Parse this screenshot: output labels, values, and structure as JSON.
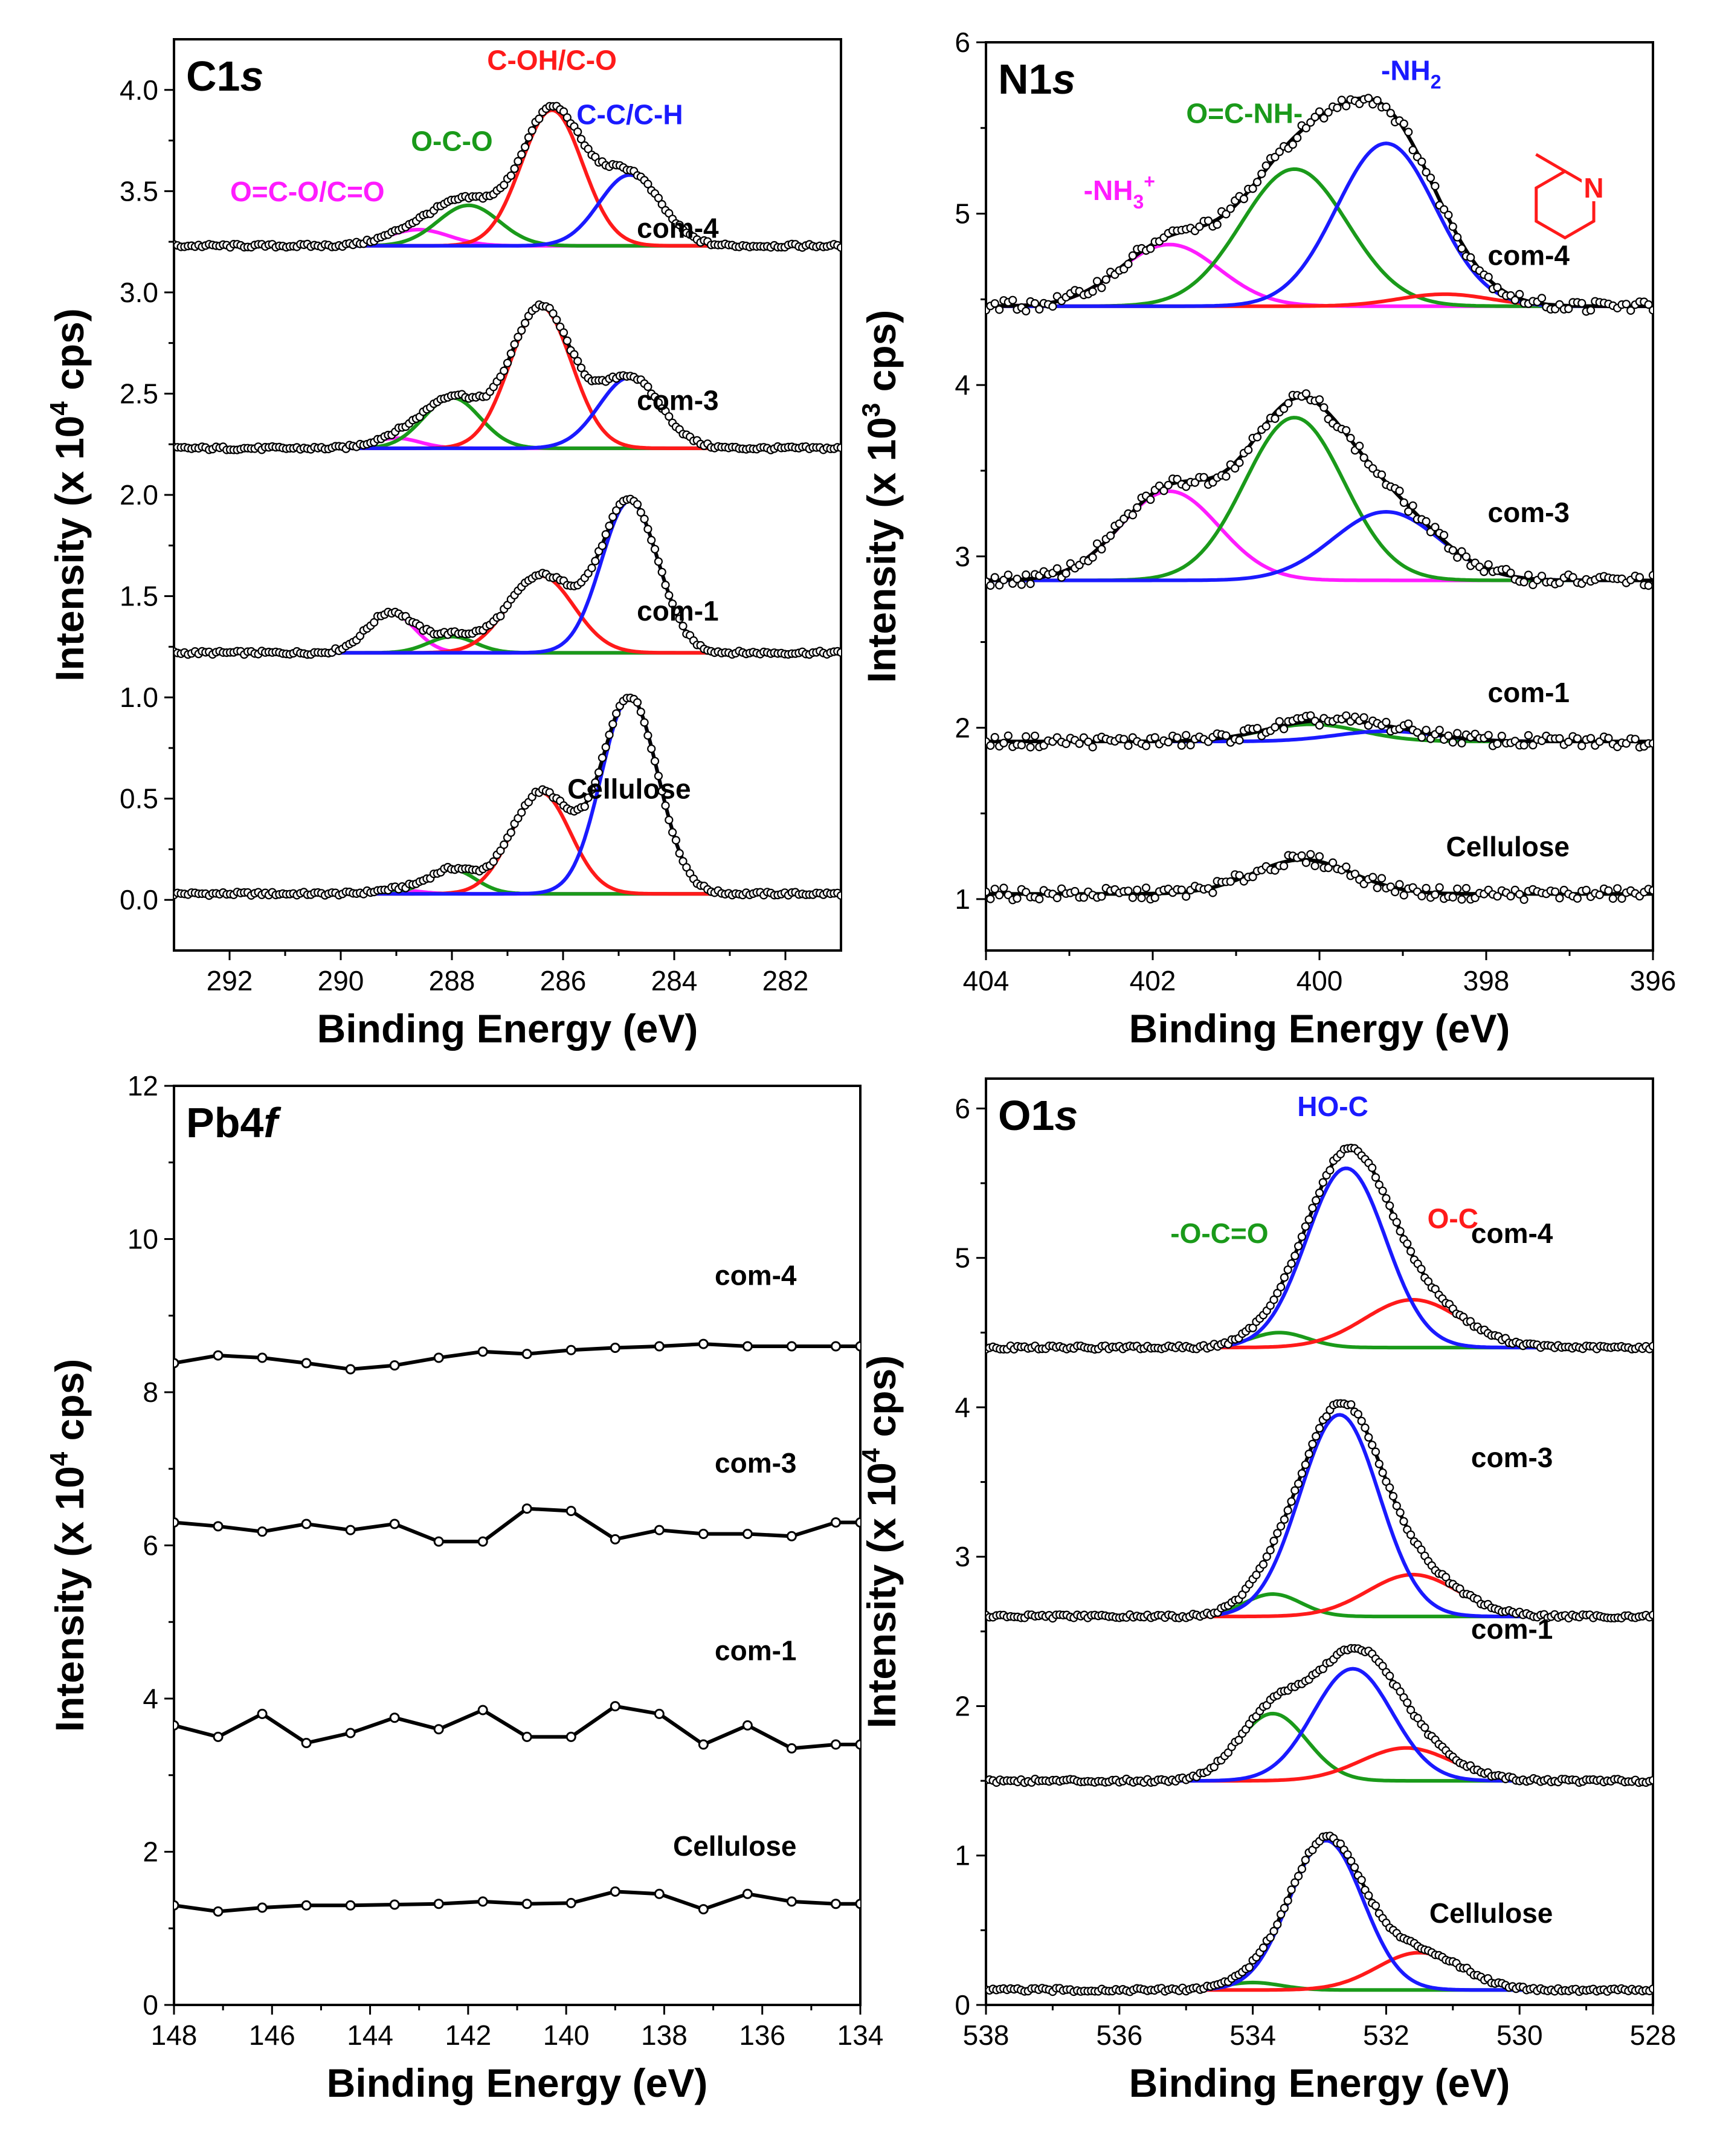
{
  "colors": {
    "magenta": "#ff1cff",
    "green": "#1a9a1a",
    "red": "#ff1a1a",
    "blue": "#1a1aff",
    "black": "#000000"
  },
  "chart_data": [
    {
      "id": "c1s",
      "type": "line",
      "title": "C1s",
      "title_main": "C1",
      "title_italic": "s",
      "xlabel": "Binding Energy (eV)",
      "ylabel_pre": "Intensity (x 10",
      "ylabel_sup": "4",
      "ylabel_post": " cps)",
      "xlim": [
        293,
        281
      ],
      "ylim": [
        -0.25,
        4.25
      ],
      "xticks": [
        292,
        290,
        288,
        286,
        284,
        282
      ],
      "yticks": [
        0.0,
        0.5,
        1.0,
        1.5,
        2.0,
        2.5,
        3.0,
        3.5,
        4.0
      ],
      "ytick_labels": [
        "0.0",
        "0.5",
        "1.0",
        "1.5",
        "2.0",
        "2.5",
        "3.0",
        "3.5",
        "4.0"
      ],
      "peak_labels": [
        {
          "text": "O=C-O/C=O",
          "color": "magenta",
          "x": 290.6,
          "y": 3.45
        },
        {
          "text": "O-C-O",
          "color": "green",
          "x": 288.0,
          "y": 3.7
        },
        {
          "text": "C-OH/C-O",
          "color": "red",
          "x": 286.2,
          "y": 4.1
        },
        {
          "text": "C-C/C-H",
          "color": "blue",
          "x": 284.8,
          "y": 3.83
        }
      ],
      "series": [
        {
          "name": "Cellulose",
          "label_x": 283.7,
          "label_y": 0.5,
          "baseline": 0.03,
          "peaks": [
            {
              "name": "O=C-O/C=O",
              "center": 289.0,
              "height": 0.02,
              "width": 0.9,
              "color": "magenta"
            },
            {
              "name": "O-C-O",
              "center": 288.0,
              "height": 0.12,
              "width": 1.0,
              "color": "green"
            },
            {
              "name": "C-OH/C-O",
              "center": 286.4,
              "height": 0.5,
              "width": 1.25,
              "color": "red"
            },
            {
              "name": "C-C/C-H",
              "center": 284.8,
              "height": 0.97,
              "width": 1.2,
              "color": "blue"
            }
          ]
        },
        {
          "name": "com-1",
          "label_x": 283.2,
          "label_y": 1.38,
          "baseline": 1.22,
          "peaks": [
            {
              "name": "O=C-O/C=O",
              "center": 289.1,
              "height": 0.2,
              "width": 1.0,
              "color": "magenta"
            },
            {
              "name": "O-C-O",
              "center": 288.0,
              "height": 0.08,
              "width": 1.0,
              "color": "green"
            },
            {
              "name": "C-OH/C-O",
              "center": 286.4,
              "height": 0.38,
              "width": 1.4,
              "color": "red"
            },
            {
              "name": "C-C/C-H",
              "center": 284.8,
              "height": 0.75,
              "width": 1.2,
              "color": "blue"
            }
          ]
        },
        {
          "name": "com-3",
          "label_x": 283.2,
          "label_y": 2.42,
          "baseline": 2.23,
          "peaks": [
            {
              "name": "O=C-O/C=O",
              "center": 289.0,
              "height": 0.05,
              "width": 1.0,
              "color": "magenta"
            },
            {
              "name": "O-C-O",
              "center": 288.0,
              "height": 0.25,
              "width": 1.2,
              "color": "green"
            },
            {
              "name": "C-OH/C-O",
              "center": 286.4,
              "height": 0.7,
              "width": 1.3,
              "color": "red"
            },
            {
              "name": "C-C/C-H",
              "center": 284.8,
              "height": 0.35,
              "width": 1.3,
              "color": "blue"
            }
          ]
        },
        {
          "name": "com-4",
          "label_x": 283.2,
          "label_y": 3.27,
          "baseline": 3.23,
          "peaks": [
            {
              "name": "O=C-O/C=O",
              "center": 288.6,
              "height": 0.08,
              "width": 1.3,
              "color": "magenta"
            },
            {
              "name": "O-C-O",
              "center": 287.7,
              "height": 0.2,
              "width": 1.3,
              "color": "green"
            },
            {
              "name": "C-OH/C-O",
              "center": 286.2,
              "height": 0.67,
              "width": 1.3,
              "color": "red"
            },
            {
              "name": "C-C/C-H",
              "center": 284.8,
              "height": 0.35,
              "width": 1.3,
              "color": "blue"
            }
          ]
        }
      ]
    },
    {
      "id": "n1s",
      "type": "line",
      "title": "N1s",
      "title_main": "N1",
      "title_italic": "s",
      "xlabel": "Binding Energy (eV)",
      "ylabel_pre": "Intensity (x 10",
      "ylabel_sup": "3",
      "ylabel_post": " cps)",
      "xlim": [
        404,
        396
      ],
      "ylim": [
        0.7,
        6.0
      ],
      "xticks": [
        404,
        402,
        400,
        398,
        396
      ],
      "yticks": [
        1,
        2,
        3,
        4,
        5,
        6
      ],
      "ytick_labels": [
        "1",
        "2",
        "3",
        "4",
        "5",
        "6"
      ],
      "peak_labels": [
        {
          "text": "-NH",
          "sub": "3",
          "sup": "+",
          "color": "magenta",
          "x": 402.4,
          "y": 5.08
        },
        {
          "text": "O=C-NH-",
          "color": "green",
          "x": 400.9,
          "y": 5.53
        },
        {
          "text": "-NH",
          "sub": "2",
          "color": "blue",
          "x": 398.9,
          "y": 5.78
        },
        {
          "text": "N",
          "color": "red",
          "x": 397.2,
          "y": 5.3
        }
      ],
      "series": [
        {
          "name": "Cellulose",
          "label_x": 397.0,
          "label_y": 1.25,
          "baseline": 1.03,
          "peaks": [
            {
              "name": "O=C-NH-",
              "center": 400.2,
              "height": 0.2,
              "width": 1.4,
              "color": "green"
            }
          ]
        },
        {
          "name": "com-1",
          "label_x": 397.0,
          "label_y": 2.15,
          "baseline": 1.92,
          "peaks": [
            {
              "name": "O=C-NH-",
              "center": 400.1,
              "height": 0.1,
              "width": 1.4,
              "color": "green"
            },
            {
              "name": "-NH2",
              "center": 399.2,
              "height": 0.06,
              "width": 1.4,
              "color": "blue"
            }
          ]
        },
        {
          "name": "com-3",
          "label_x": 397.0,
          "label_y": 3.2,
          "baseline": 2.86,
          "peaks": [
            {
              "name": "-NH3+",
              "center": 401.8,
              "height": 0.52,
              "width": 1.4,
              "color": "magenta"
            },
            {
              "name": "O=C-NH-",
              "center": 400.3,
              "height": 0.95,
              "width": 1.4,
              "color": "green"
            },
            {
              "name": "-NH2",
              "center": 399.2,
              "height": 0.4,
              "width": 1.5,
              "color": "blue"
            }
          ]
        },
        {
          "name": "com-4",
          "label_x": 397.0,
          "label_y": 4.7,
          "baseline": 4.46,
          "peaks": [
            {
              "name": "-NH3+",
              "center": 401.8,
              "height": 0.36,
              "width": 1.4,
              "color": "magenta"
            },
            {
              "name": "O=C-NH-",
              "center": 400.3,
              "height": 0.8,
              "width": 1.5,
              "color": "green"
            },
            {
              "name": "-NH2",
              "center": 399.2,
              "height": 0.95,
              "width": 1.4,
              "color": "blue"
            },
            {
              "name": "pyridinic N",
              "center": 398.5,
              "height": 0.07,
              "width": 1.3,
              "color": "red"
            }
          ]
        }
      ]
    },
    {
      "id": "pb4f",
      "type": "line",
      "title": "Pb4f",
      "title_main": "Pb4",
      "title_italic": "f",
      "xlabel": "Binding Energy (eV)",
      "ylabel_pre": "Intensity (x 10",
      "ylabel_sup": "4",
      "ylabel_post": " cps)",
      "xlim": [
        148,
        134
      ],
      "ylim": [
        0,
        12
      ],
      "xticks": [
        148,
        146,
        144,
        142,
        140,
        138,
        136,
        134
      ],
      "yticks": [
        0,
        2,
        4,
        6,
        8,
        10,
        12
      ],
      "ytick_labels": [
        "0",
        "2",
        "4",
        "6",
        "8",
        "10",
        "12"
      ],
      "x_points": [
        148.0,
        147.1,
        146.2,
        145.3,
        144.4,
        143.5,
        142.6,
        141.7,
        140.8,
        139.9,
        139.0,
        138.1,
        137.2,
        136.3,
        135.4,
        134.5,
        134.0
      ],
      "series": [
        {
          "name": "Cellulose",
          "label_x": 135.3,
          "label_y": 1.95,
          "values": [
            1.3,
            1.22,
            1.27,
            1.3,
            1.3,
            1.31,
            1.32,
            1.35,
            1.32,
            1.33,
            1.48,
            1.45,
            1.25,
            1.45,
            1.35,
            1.32,
            1.32
          ]
        },
        {
          "name": "com-1",
          "label_x": 135.3,
          "label_y": 4.5,
          "values": [
            3.65,
            3.5,
            3.8,
            3.42,
            3.55,
            3.75,
            3.6,
            3.85,
            3.5,
            3.5,
            3.9,
            3.8,
            3.4,
            3.65,
            3.35,
            3.4,
            3.4
          ]
        },
        {
          "name": "com-3",
          "label_x": 135.3,
          "label_y": 6.95,
          "values": [
            6.3,
            6.25,
            6.18,
            6.28,
            6.2,
            6.28,
            6.05,
            6.05,
            6.48,
            6.45,
            6.08,
            6.2,
            6.15,
            6.15,
            6.12,
            6.3,
            6.3
          ]
        },
        {
          "name": "com-4",
          "label_x": 135.3,
          "label_y": 9.4,
          "values": [
            8.38,
            8.48,
            8.45,
            8.38,
            8.3,
            8.35,
            8.45,
            8.53,
            8.5,
            8.55,
            8.58,
            8.6,
            8.63,
            8.6,
            8.6,
            8.6,
            8.6
          ]
        }
      ]
    },
    {
      "id": "o1s",
      "type": "line",
      "title": "O1s",
      "title_main": "O1",
      "title_italic": "s",
      "xlabel": "Binding Energy (eV)",
      "ylabel_pre": "Intensity (x 10",
      "ylabel_sup": "4",
      "ylabel_post": " cps)",
      "xlim": [
        538,
        528
      ],
      "ylim": [
        0,
        6.2
      ],
      "xticks": [
        538,
        536,
        534,
        532,
        530,
        528
      ],
      "yticks": [
        0,
        1,
        2,
        3,
        4,
        5,
        6
      ],
      "ytick_labels": [
        "0",
        "1",
        "2",
        "3",
        "4",
        "5",
        "6"
      ],
      "peak_labels": [
        {
          "text": "-O-C=O",
          "color": "green",
          "x": 534.5,
          "y": 5.1
        },
        {
          "text": "HO-C",
          "color": "blue",
          "x": 532.8,
          "y": 5.95
        },
        {
          "text": "O-C",
          "color": "red",
          "x": 531.0,
          "y": 5.2
        }
      ],
      "series": [
        {
          "name": "Cellulose",
          "label_x": 529.5,
          "label_y": 0.55,
          "baseline": 0.1,
          "peaks": [
            {
              "name": "-O-C=O",
              "center": 534.0,
              "height": 0.05,
              "width": 1.0,
              "color": "green"
            },
            {
              "name": "HO-C",
              "center": 532.9,
              "height": 1.0,
              "width": 1.3,
              "color": "blue"
            },
            {
              "name": "O-C",
              "center": 531.5,
              "height": 0.25,
              "width": 1.5,
              "color": "red"
            }
          ]
        },
        {
          "name": "com-1",
          "label_x": 529.5,
          "label_y": 2.45,
          "baseline": 1.5,
          "peaks": [
            {
              "name": "-O-C=O",
              "center": 533.7,
              "height": 0.45,
              "width": 1.2,
              "color": "green"
            },
            {
              "name": "HO-C",
              "center": 532.5,
              "height": 0.75,
              "width": 1.4,
              "color": "blue"
            },
            {
              "name": "O-C",
              "center": 531.7,
              "height": 0.22,
              "width": 1.6,
              "color": "red"
            }
          ]
        },
        {
          "name": "com-3",
          "label_x": 529.5,
          "label_y": 3.6,
          "baseline": 2.6,
          "peaks": [
            {
              "name": "-O-C=O",
              "center": 533.7,
              "height": 0.15,
              "width": 1.0,
              "color": "green"
            },
            {
              "name": "HO-C",
              "center": 532.7,
              "height": 1.35,
              "width": 1.4,
              "color": "blue"
            },
            {
              "name": "O-C",
              "center": 531.6,
              "height": 0.28,
              "width": 1.6,
              "color": "red"
            }
          ]
        },
        {
          "name": "com-4",
          "label_x": 529.5,
          "label_y": 5.1,
          "baseline": 4.4,
          "peaks": [
            {
              "name": "-O-C=O",
              "center": 533.6,
              "height": 0.1,
              "width": 1.0,
              "color": "green"
            },
            {
              "name": "HO-C",
              "center": 532.6,
              "height": 1.2,
              "width": 1.4,
              "color": "blue"
            },
            {
              "name": "O-C",
              "center": 531.6,
              "height": 0.32,
              "width": 1.7,
              "color": "red"
            }
          ]
        }
      ]
    }
  ]
}
